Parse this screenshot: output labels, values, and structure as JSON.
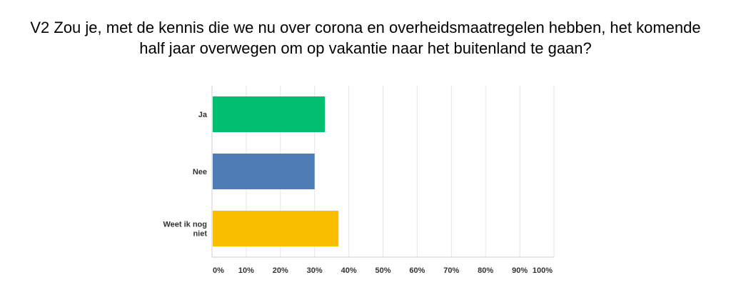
{
  "chart_data": {
    "type": "bar",
    "orientation": "horizontal",
    "title": "V2 Zou je, met de kennis die we nu over corona en overheidsmaatregelen hebben, het komende half jaar overwegen om op vakantie naar het buitenland te gaan?",
    "categories": [
      "Ja",
      "Nee",
      "Weet ik nog niet"
    ],
    "values": [
      33,
      30,
      37
    ],
    "colors": [
      "#00bf6f",
      "#507cb6",
      "#f9be00"
    ],
    "xlim": [
      0,
      100
    ],
    "x_ticks": [
      0,
      10,
      20,
      30,
      40,
      50,
      60,
      70,
      80,
      90,
      100
    ],
    "x_tick_labels": [
      "0%",
      "10%",
      "20%",
      "30%",
      "40%",
      "50%",
      "60%",
      "70%",
      "80%",
      "90%",
      "100%"
    ],
    "grid": true,
    "legend": "none"
  }
}
